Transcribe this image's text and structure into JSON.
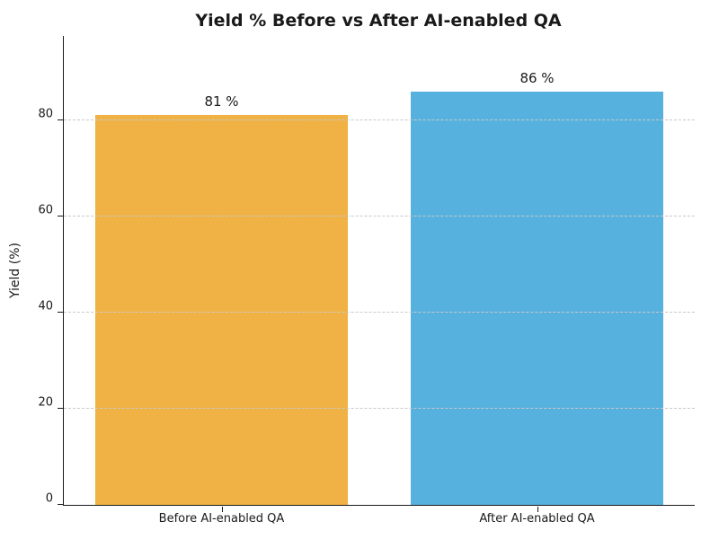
{
  "chart_data": {
    "type": "bar",
    "title": "Yield % Before vs After AI-enabled QA",
    "categories": [
      "Before AI-enabled QA",
      "After AI-enabled QA"
    ],
    "values": [
      81,
      86
    ],
    "bar_value_labels": [
      "81 %",
      "86 %"
    ],
    "bar_colors": [
      "#F0B244",
      "#57B1DE"
    ],
    "xlabel": "",
    "ylabel": "Yield (%)",
    "ylim": [
      0,
      97.5
    ],
    "yticks": [
      0,
      20,
      40,
      60,
      80
    ],
    "bar_width_fraction": 0.8,
    "grid": "horizontal dashed gridlines at yticks above 0, drawn over bars",
    "grid_color": "#c9c9c9",
    "legend": "none",
    "background_color": "#ffffff",
    "text_color": "#1a1a1a"
  }
}
